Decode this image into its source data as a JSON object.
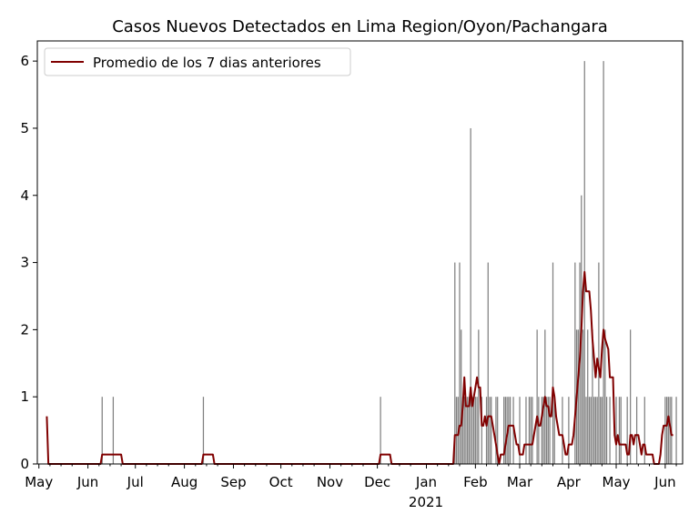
{
  "chart_data": {
    "type": "bar",
    "title": "Casos Nuevos Detectados en Lima Region/Oyon/Pachangara",
    "xlabel": "",
    "ylabel": "",
    "x_range": [
      "2020-04-30",
      "2021-06-12"
    ],
    "ylim": [
      0,
      6.3
    ],
    "y_ticks": [
      0,
      1,
      2,
      3,
      4,
      5,
      6
    ],
    "x_ticks": [
      {
        "date": "2020-05-01",
        "label": "May"
      },
      {
        "date": "2020-06-01",
        "label": "Jun"
      },
      {
        "date": "2020-07-01",
        "label": "Jul"
      },
      {
        "date": "2020-08-01",
        "label": "Aug"
      },
      {
        "date": "2020-09-01",
        "label": "Sep"
      },
      {
        "date": "2020-10-01",
        "label": "Oct"
      },
      {
        "date": "2020-11-01",
        "label": "Nov"
      },
      {
        "date": "2020-12-01",
        "label": "Dec"
      },
      {
        "date": "2021-01-01",
        "label": "Jan"
      },
      {
        "date": "2021-02-01",
        "label": "Feb"
      },
      {
        "date": "2021-03-01",
        "label": "Mar"
      },
      {
        "date": "2021-04-01",
        "label": "Apr"
      },
      {
        "date": "2021-05-01",
        "label": "May"
      },
      {
        "date": "2021-06-01",
        "label": "Jun"
      }
    ],
    "year_label": "2021",
    "grid": false,
    "legend": {
      "position": "top-left",
      "entries": [
        "Promedio de los 7 dias anteriores"
      ]
    },
    "series": [
      {
        "kind": "bar",
        "color": "#808080",
        "data": [
          [
            "2020-06-10",
            1
          ],
          [
            "2020-06-17",
            1
          ],
          [
            "2020-08-13",
            1
          ],
          [
            "2020-12-03",
            1
          ],
          [
            "2021-01-19",
            3
          ],
          [
            "2021-01-20",
            1
          ],
          [
            "2021-01-21",
            1
          ],
          [
            "2021-01-22",
            3
          ],
          [
            "2021-01-23",
            2
          ],
          [
            "2021-01-24",
            1
          ],
          [
            "2021-01-25",
            1
          ],
          [
            "2021-01-26",
            1
          ],
          [
            "2021-01-27",
            1
          ],
          [
            "2021-01-28",
            1
          ],
          [
            "2021-01-29",
            5
          ],
          [
            "2021-01-30",
            1
          ],
          [
            "2021-01-31",
            1
          ],
          [
            "2021-02-01",
            1
          ],
          [
            "2021-02-02",
            1
          ],
          [
            "2021-02-03",
            2
          ],
          [
            "2021-02-05",
            1
          ],
          [
            "2021-02-08",
            1
          ],
          [
            "2021-02-09",
            3
          ],
          [
            "2021-02-10",
            1
          ],
          [
            "2021-02-11",
            1
          ],
          [
            "2021-02-14",
            1
          ],
          [
            "2021-02-15",
            1
          ],
          [
            "2021-02-19",
            1
          ],
          [
            "2021-02-20",
            1
          ],
          [
            "2021-02-21",
            1
          ],
          [
            "2021-02-22",
            1
          ],
          [
            "2021-02-23",
            1
          ],
          [
            "2021-02-25",
            1
          ],
          [
            "2021-03-01",
            1
          ],
          [
            "2021-03-05",
            1
          ],
          [
            "2021-03-07",
            1
          ],
          [
            "2021-03-08",
            1
          ],
          [
            "2021-03-09",
            1
          ],
          [
            "2021-03-12",
            2
          ],
          [
            "2021-03-13",
            1
          ],
          [
            "2021-03-15",
            1
          ],
          [
            "2021-03-16",
            1
          ],
          [
            "2021-03-17",
            2
          ],
          [
            "2021-03-18",
            1
          ],
          [
            "2021-03-19",
            1
          ],
          [
            "2021-03-20",
            1
          ],
          [
            "2021-03-22",
            3
          ],
          [
            "2021-03-23",
            1
          ],
          [
            "2021-03-28",
            1
          ],
          [
            "2021-04-01",
            1
          ],
          [
            "2021-04-05",
            3
          ],
          [
            "2021-04-06",
            2
          ],
          [
            "2021-04-07",
            2
          ],
          [
            "2021-04-08",
            3
          ],
          [
            "2021-04-09",
            4
          ],
          [
            "2021-04-10",
            2
          ],
          [
            "2021-04-11",
            6
          ],
          [
            "2021-04-12",
            1
          ],
          [
            "2021-04-13",
            2
          ],
          [
            "2021-04-14",
            1
          ],
          [
            "2021-04-15",
            1
          ],
          [
            "2021-04-16",
            2
          ],
          [
            "2021-04-17",
            1
          ],
          [
            "2021-04-18",
            1
          ],
          [
            "2021-04-19",
            1
          ],
          [
            "2021-04-20",
            3
          ],
          [
            "2021-04-21",
            1
          ],
          [
            "2021-04-22",
            1
          ],
          [
            "2021-04-23",
            6
          ],
          [
            "2021-04-24",
            2
          ],
          [
            "2021-04-25",
            1
          ],
          [
            "2021-04-27",
            1
          ],
          [
            "2021-05-01",
            1
          ],
          [
            "2021-05-03",
            1
          ],
          [
            "2021-05-04",
            1
          ],
          [
            "2021-05-08",
            1
          ],
          [
            "2021-05-10",
            2
          ],
          [
            "2021-05-14",
            1
          ],
          [
            "2021-05-19",
            1
          ],
          [
            "2021-06-01",
            1
          ],
          [
            "2021-06-02",
            1
          ],
          [
            "2021-06-03",
            1
          ],
          [
            "2021-06-04",
            1
          ],
          [
            "2021-06-05",
            1
          ],
          [
            "2021-06-08",
            1
          ]
        ]
      },
      {
        "kind": "line",
        "name": "Promedio de los 7 dias anteriores",
        "color": "#800000",
        "data": [
          [
            "2020-05-06",
            0.71
          ],
          [
            "2020-05-07",
            0
          ],
          [
            "2020-06-09",
            0
          ],
          [
            "2020-06-10",
            0.14
          ],
          [
            "2020-06-22",
            0.14
          ],
          [
            "2020-06-23",
            0
          ],
          [
            "2020-08-12",
            0
          ],
          [
            "2020-08-13",
            0.14
          ],
          [
            "2020-08-19",
            0.14
          ],
          [
            "2020-08-20",
            0
          ],
          [
            "2020-12-02",
            0
          ],
          [
            "2020-12-03",
            0.14
          ],
          [
            "2020-12-09",
            0.14
          ],
          [
            "2020-12-10",
            0
          ],
          [
            "2021-01-18",
            0
          ],
          [
            "2021-01-19",
            0.43
          ],
          [
            "2021-01-21",
            0.43
          ],
          [
            "2021-01-22",
            0.57
          ],
          [
            "2021-01-23",
            0.57
          ],
          [
            "2021-01-24",
            0.86
          ],
          [
            "2021-01-25",
            1.29
          ],
          [
            "2021-01-26",
            0.86
          ],
          [
            "2021-01-28",
            0.86
          ],
          [
            "2021-01-29",
            1.14
          ],
          [
            "2021-01-30",
            0.86
          ],
          [
            "2021-01-31",
            1.0
          ],
          [
            "2021-02-01",
            1.14
          ],
          [
            "2021-02-02",
            1.29
          ],
          [
            "2021-02-03",
            1.14
          ],
          [
            "2021-02-04",
            1.14
          ],
          [
            "2021-02-05",
            0.57
          ],
          [
            "2021-02-06",
            0.57
          ],
          [
            "2021-02-07",
            0.71
          ],
          [
            "2021-02-08",
            0.57
          ],
          [
            "2021-02-09",
            0.71
          ],
          [
            "2021-02-11",
            0.71
          ],
          [
            "2021-02-12",
            0.57
          ],
          [
            "2021-02-13",
            0.43
          ],
          [
            "2021-02-14",
            0.29
          ],
          [
            "2021-02-15",
            0.14
          ],
          [
            "2021-02-16",
            0
          ],
          [
            "2021-02-17",
            0.14
          ],
          [
            "2021-02-19",
            0.14
          ],
          [
            "2021-02-20",
            0.29
          ],
          [
            "2021-02-21",
            0.43
          ],
          [
            "2021-02-22",
            0.57
          ],
          [
            "2021-02-25",
            0.57
          ],
          [
            "2021-02-26",
            0.43
          ],
          [
            "2021-02-27",
            0.29
          ],
          [
            "2021-02-28",
            0.29
          ],
          [
            "2021-03-01",
            0.14
          ],
          [
            "2021-03-03",
            0.14
          ],
          [
            "2021-03-04",
            0.29
          ],
          [
            "2021-03-09",
            0.29
          ],
          [
            "2021-03-10",
            0.43
          ],
          [
            "2021-03-11",
            0.57
          ],
          [
            "2021-03-12",
            0.71
          ],
          [
            "2021-03-13",
            0.57
          ],
          [
            "2021-03-14",
            0.57
          ],
          [
            "2021-03-15",
            0.71
          ],
          [
            "2021-03-16",
            0.86
          ],
          [
            "2021-03-17",
            1.0
          ],
          [
            "2021-03-18",
            0.86
          ],
          [
            "2021-03-19",
            0.86
          ],
          [
            "2021-03-20",
            0.71
          ],
          [
            "2021-03-21",
            0.71
          ],
          [
            "2021-03-22",
            1.14
          ],
          [
            "2021-03-23",
            1.0
          ],
          [
            "2021-03-24",
            0.71
          ],
          [
            "2021-03-25",
            0.57
          ],
          [
            "2021-03-26",
            0.43
          ],
          [
            "2021-03-28",
            0.43
          ],
          [
            "2021-03-29",
            0.29
          ],
          [
            "2021-03-30",
            0.14
          ],
          [
            "2021-03-31",
            0.14
          ],
          [
            "2021-04-01",
            0.29
          ],
          [
            "2021-04-03",
            0.29
          ],
          [
            "2021-04-04",
            0.43
          ],
          [
            "2021-04-05",
            0.71
          ],
          [
            "2021-04-06",
            1.0
          ],
          [
            "2021-04-07",
            1.29
          ],
          [
            "2021-04-08",
            1.57
          ],
          [
            "2021-04-09",
            2.0
          ],
          [
            "2021-04-10",
            2.57
          ],
          [
            "2021-04-11",
            2.86
          ],
          [
            "2021-04-12",
            2.57
          ],
          [
            "2021-04-14",
            2.57
          ],
          [
            "2021-04-15",
            2.29
          ],
          [
            "2021-04-16",
            1.86
          ],
          [
            "2021-04-17",
            1.57
          ],
          [
            "2021-04-18",
            1.29
          ],
          [
            "2021-04-19",
            1.57
          ],
          [
            "2021-04-20",
            1.43
          ],
          [
            "2021-04-21",
            1.29
          ],
          [
            "2021-04-22",
            1.71
          ],
          [
            "2021-04-23",
            2.0
          ],
          [
            "2021-04-24",
            1.86
          ],
          [
            "2021-04-26",
            1.71
          ],
          [
            "2021-04-27",
            1.29
          ],
          [
            "2021-04-29",
            1.29
          ],
          [
            "2021-04-30",
            0.43
          ],
          [
            "2021-05-01",
            0.29
          ],
          [
            "2021-05-02",
            0.43
          ],
          [
            "2021-05-03",
            0.29
          ],
          [
            "2021-05-07",
            0.29
          ],
          [
            "2021-05-08",
            0.14
          ],
          [
            "2021-05-09",
            0.14
          ],
          [
            "2021-05-10",
            0.43
          ],
          [
            "2021-05-11",
            0.43
          ],
          [
            "2021-05-12",
            0.29
          ],
          [
            "2021-05-13",
            0.43
          ],
          [
            "2021-05-15",
            0.43
          ],
          [
            "2021-05-16",
            0.29
          ],
          [
            "2021-05-17",
            0.14
          ],
          [
            "2021-05-18",
            0.29
          ],
          [
            "2021-05-19",
            0.29
          ],
          [
            "2021-05-20",
            0.14
          ],
          [
            "2021-05-24",
            0.14
          ],
          [
            "2021-05-25",
            0
          ],
          [
            "2021-05-28",
            0
          ],
          [
            "2021-05-29",
            0.14
          ],
          [
            "2021-05-30",
            0.43
          ],
          [
            "2021-05-31",
            0.57
          ],
          [
            "2021-06-02",
            0.57
          ],
          [
            "2021-06-03",
            0.71
          ],
          [
            "2021-06-04",
            0.57
          ],
          [
            "2021-06-05",
            0.43
          ],
          [
            "2021-06-06",
            0.43
          ]
        ]
      }
    ]
  }
}
